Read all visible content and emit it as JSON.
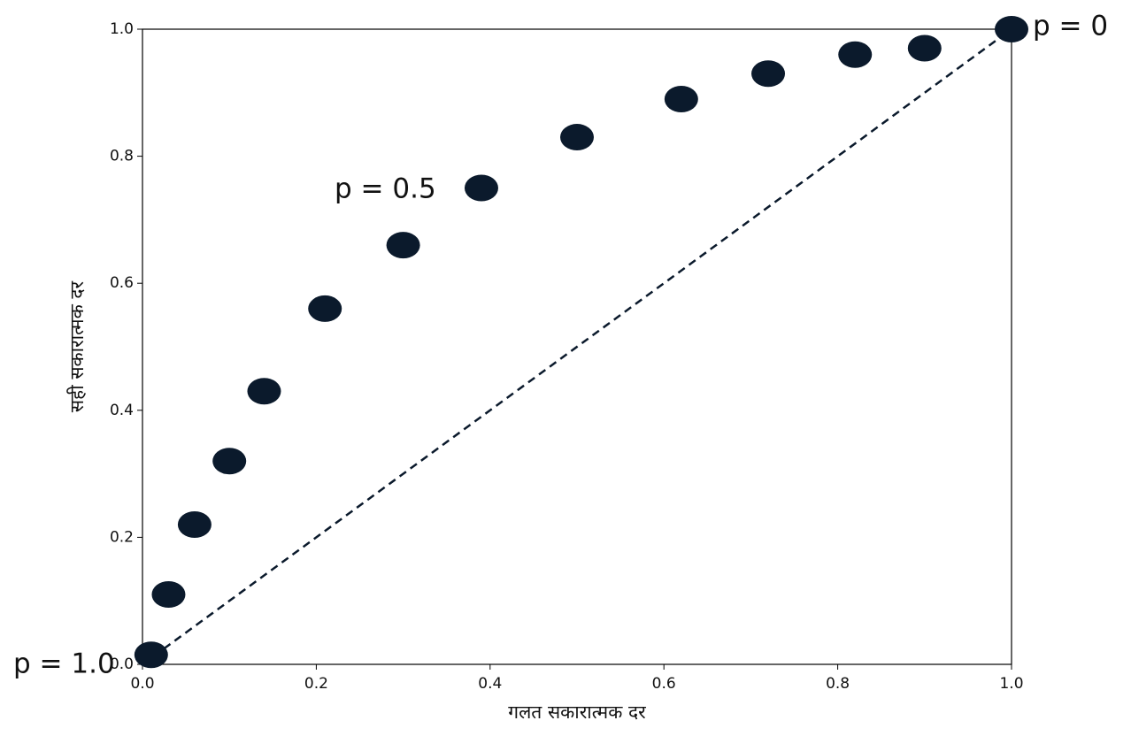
{
  "chart_data": {
    "type": "scatter",
    "xlabel": "गलत सकारात्मक दर",
    "ylabel": "सही सकारात्मक दर",
    "x": [
      0.01,
      0.03,
      0.06,
      0.1,
      0.14,
      0.21,
      0.3,
      0.39,
      0.5,
      0.62,
      0.72,
      0.82,
      0.9,
      1.0
    ],
    "values": [
      0.015,
      0.11,
      0.22,
      0.32,
      0.43,
      0.56,
      0.66,
      0.75,
      0.83,
      0.89,
      0.93,
      0.96,
      0.97,
      1.0
    ],
    "color": "#0b1a2c",
    "xlim": [
      0,
      1
    ],
    "ylim": [
      0,
      1
    ],
    "xticks": [
      {
        "value": 0,
        "label": "0.0"
      },
      0.2,
      0.4,
      0.6,
      0.8,
      {
        "value": 1,
        "label": "1.0"
      }
    ],
    "yticks": [
      {
        "value": 0,
        "label": "0.0"
      },
      0.2,
      0.4,
      0.6,
      0.8,
      {
        "value": 1,
        "label": "1.0"
      }
    ],
    "annotations": [
      "p = 1.0",
      "p = 0.5",
      "p = 0"
    ]
  }
}
